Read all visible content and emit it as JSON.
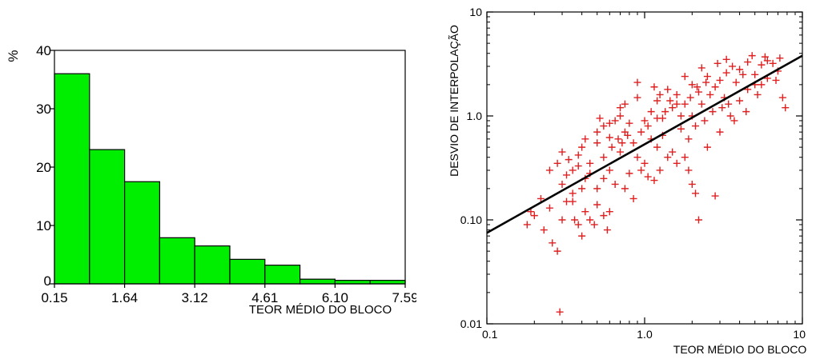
{
  "chart_data": [
    {
      "type": "bar",
      "title": "",
      "ylabel": "%",
      "xlabel": "TEOR MÉDIO DO BLOCO",
      "ylim": [
        0,
        40
      ],
      "yticks": [
        "0",
        "10",
        "20",
        "30",
        "40"
      ],
      "xtick_labels": [
        "0.15",
        "1.64",
        "3.12",
        "4.61",
        "6.10",
        "7.59"
      ],
      "bin_edges": [
        0.15,
        0.894,
        1.638,
        2.382,
        3.126,
        3.87,
        4.614,
        5.358,
        6.102,
        6.846,
        7.59
      ],
      "values": [
        36.0,
        23.0,
        17.5,
        7.9,
        6.5,
        4.2,
        3.2,
        0.8,
        0.6,
        0.6
      ],
      "colors": {
        "bar_fill": "#00ee00",
        "bar_stroke": "#000000"
      }
    },
    {
      "type": "scatter",
      "title": "",
      "xlabel": "TEOR MÉDIO DO BLOCO",
      "ylabel": "DESVIO DE INTERPOLAÇÃO",
      "xscale": "log",
      "yscale": "log",
      "xlim": [
        0.1,
        10
      ],
      "ylim": [
        0.01,
        10
      ],
      "xtick_labels": [
        "0.1",
        "1.0",
        "10"
      ],
      "ytick_labels": [
        "0.01",
        "0.10",
        "1.0",
        "10"
      ],
      "marker": "+",
      "trend_line": {
        "x": [
          0.1,
          10
        ],
        "y": [
          0.075,
          3.8
        ]
      },
      "points": [
        [
          0.29,
          0.013
        ],
        [
          0.18,
          0.09
        ],
        [
          0.19,
          0.12
        ],
        [
          0.2,
          0.11
        ],
        [
          0.22,
          0.16
        ],
        [
          0.23,
          0.08
        ],
        [
          0.25,
          0.13
        ],
        [
          0.26,
          0.06
        ],
        [
          0.28,
          0.05
        ],
        [
          0.3,
          0.1
        ],
        [
          0.32,
          0.15
        ],
        [
          0.35,
          0.18
        ],
        [
          0.38,
          0.09
        ],
        [
          0.4,
          0.07
        ],
        [
          0.42,
          0.12
        ],
        [
          0.45,
          0.1
        ],
        [
          0.5,
          0.14
        ],
        [
          0.55,
          0.11
        ],
        [
          0.6,
          0.12
        ],
        [
          0.3,
          0.45
        ],
        [
          0.33,
          0.38
        ],
        [
          0.35,
          0.3
        ],
        [
          0.38,
          0.42
        ],
        [
          0.4,
          0.5
        ],
        [
          0.42,
          0.25
        ],
        [
          0.45,
          0.35
        ],
        [
          0.5,
          0.55
        ],
        [
          0.55,
          0.8
        ],
        [
          0.6,
          0.62
        ],
        [
          0.65,
          0.9
        ],
        [
          0.7,
          1.2
        ],
        [
          0.75,
          0.7
        ],
        [
          0.8,
          0.85
        ],
        [
          0.9,
          1.5
        ],
        [
          1.0,
          0.9
        ],
        [
          1.1,
          1.1
        ],
        [
          1.2,
          1.4
        ],
        [
          1.3,
          0.95
        ],
        [
          1.4,
          1.8
        ],
        [
          1.5,
          1.2
        ],
        [
          1.6,
          1.6
        ],
        [
          1.8,
          1.3
        ],
        [
          2.0,
          2.0
        ],
        [
          2.2,
          1.7
        ],
        [
          2.5,
          2.4
        ],
        [
          2.8,
          1.9
        ],
        [
          3.0,
          2.2
        ],
        [
          3.3,
          2.6
        ],
        [
          3.6,
          3.0
        ],
        [
          4.0,
          2.8
        ],
        [
          4.5,
          3.3
        ],
        [
          5.0,
          2.5
        ],
        [
          5.5,
          3.1
        ],
        [
          6.0,
          3.4
        ],
        [
          6.5,
          3.2
        ],
        [
          7.0,
          2.7
        ],
        [
          7.5,
          1.5
        ],
        [
          7.8,
          1.2
        ],
        [
          0.6,
          0.3
        ],
        [
          0.7,
          0.45
        ],
        [
          0.8,
          0.28
        ],
        [
          0.9,
          0.4
        ],
        [
          1.0,
          0.35
        ],
        [
          1.1,
          0.6
        ],
        [
          1.2,
          0.5
        ],
        [
          1.3,
          0.65
        ],
        [
          1.5,
          0.45
        ],
        [
          1.7,
          0.75
        ],
        [
          1.9,
          0.6
        ],
        [
          2.0,
          0.22
        ],
        [
          2.1,
          0.18
        ],
        [
          2.2,
          0.1
        ],
        [
          2.8,
          0.17
        ],
        [
          2.5,
          0.5
        ],
        [
          3.0,
          0.7
        ],
        [
          3.5,
          1.0
        ],
        [
          4.0,
          1.4
        ],
        [
          4.5,
          1.8
        ],
        [
          5.0,
          2.0
        ],
        [
          0.5,
          0.2
        ],
        [
          0.55,
          0.25
        ],
        [
          0.65,
          0.22
        ],
        [
          0.75,
          0.2
        ],
        [
          0.85,
          0.16
        ],
        [
          0.95,
          0.3
        ],
        [
          1.05,
          0.26
        ],
        [
          1.15,
          0.24
        ],
        [
          1.25,
          0.3
        ],
        [
          0.4,
          0.2
        ],
        [
          0.45,
          0.28
        ],
        [
          0.35,
          0.15
        ],
        [
          0.3,
          0.22
        ],
        [
          0.25,
          0.3
        ],
        [
          0.28,
          0.35
        ],
        [
          1.8,
          2.4
        ],
        [
          2.0,
          1.0
        ],
        [
          2.3,
          1.3
        ],
        [
          2.6,
          1.6
        ],
        [
          3.2,
          1.5
        ],
        [
          3.8,
          2.1
        ],
        [
          4.2,
          2.5
        ],
        [
          5.5,
          2.0
        ],
        [
          6.0,
          2.3
        ],
        [
          1.4,
          0.4
        ],
        [
          1.6,
          0.35
        ],
        [
          1.8,
          0.4
        ],
        [
          1.9,
          0.3
        ],
        [
          0.85,
          0.55
        ],
        [
          0.95,
          0.7
        ],
        [
          1.05,
          0.8
        ],
        [
          1.2,
          0.95
        ],
        [
          1.35,
          1.1
        ],
        [
          0.55,
          0.4
        ],
        [
          0.62,
          0.5
        ],
        [
          0.68,
          0.6
        ],
        [
          0.72,
          0.55
        ],
        [
          0.78,
          0.65
        ],
        [
          2.1,
          0.8
        ],
        [
          2.4,
          0.9
        ],
        [
          2.7,
          1.1
        ],
        [
          3.1,
          1.2
        ],
        [
          3.4,
          1.3
        ],
        [
          0.36,
          0.1
        ],
        [
          0.48,
          0.09
        ],
        [
          0.58,
          0.08
        ],
        [
          1.7,
          1.0
        ],
        [
          1.6,
          1.3
        ],
        [
          1.45,
          1.4
        ],
        [
          1.25,
          1.6
        ],
        [
          1.15,
          1.9
        ],
        [
          0.9,
          2.1
        ],
        [
          0.75,
          1.3
        ],
        [
          3.7,
          0.9
        ],
        [
          4.4,
          1.1
        ],
        [
          5.2,
          1.6
        ],
        [
          6.8,
          2.2
        ],
        [
          7.2,
          3.6
        ],
        [
          0.42,
          0.6
        ],
        [
          0.5,
          0.7
        ],
        [
          0.6,
          0.85
        ],
        [
          0.52,
          0.95
        ],
        [
          0.7,
          1.0
        ],
        [
          2.3,
          2.9
        ],
        [
          2.9,
          3.2
        ],
        [
          3.3,
          3.5
        ],
        [
          4.8,
          3.8
        ],
        [
          5.8,
          3.7
        ],
        [
          1.95,
          1.5
        ],
        [
          2.15,
          1.9
        ],
        [
          2.45,
          2.1
        ],
        [
          0.32,
          0.27
        ],
        [
          0.38,
          0.33
        ]
      ],
      "colors": {
        "point": "#e02020",
        "line": "#000000"
      }
    }
  ]
}
